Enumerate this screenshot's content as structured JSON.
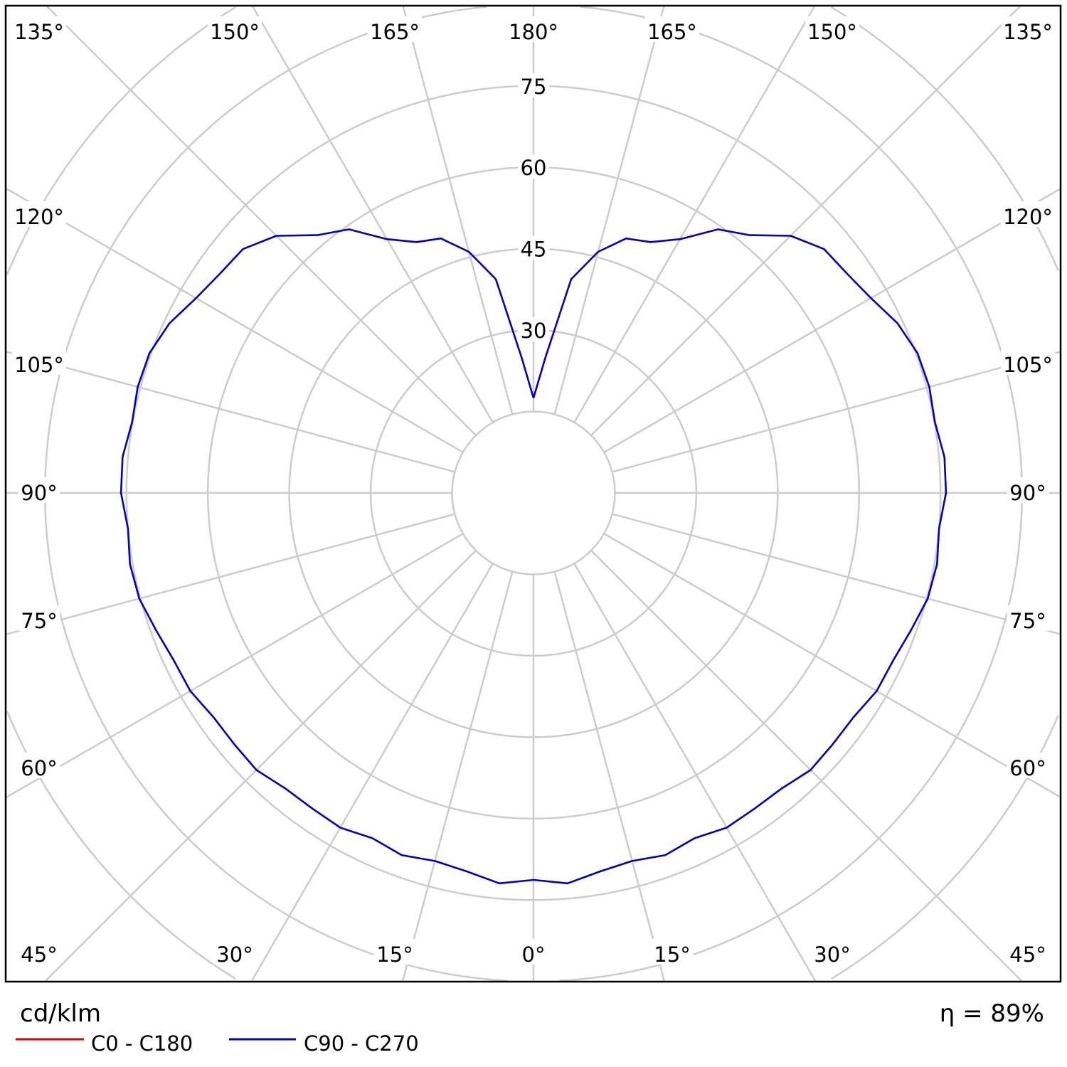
{
  "chart_data": {
    "type": "polar-line",
    "unit_label": "cd/klm",
    "efficiency_label": "η = 89%",
    "radial_ticks": [
      15,
      30,
      45,
      60,
      75,
      90,
      105
    ],
    "radial_tick_labels": [
      "30",
      "45",
      "60",
      "75"
    ],
    "angle_labels": {
      "bottom": [
        "45°",
        "30°",
        "15°",
        "0°",
        "15°",
        "30°",
        "45°"
      ],
      "top": [
        "135°",
        "150°",
        "165°",
        "180°",
        "165°",
        "150°",
        "135°"
      ],
      "left": [
        "120°",
        "105°",
        "90°",
        "75°",
        "60°"
      ],
      "right": [
        "120°",
        "105°",
        "90°",
        "75°",
        "60°"
      ]
    },
    "grid": true,
    "gamma_deg": [
      0,
      5,
      10,
      15,
      20,
      25,
      30,
      35,
      40,
      45,
      50,
      55,
      60,
      65,
      70,
      75,
      80,
      85,
      90,
      95,
      100,
      105,
      110,
      115,
      120,
      125,
      130,
      135,
      140,
      145,
      150,
      155,
      160,
      165,
      170,
      175,
      180
    ],
    "series": [
      {
        "name": "C0 - C180",
        "color": "#e00000",
        "values": []
      },
      {
        "name": "C90 - C270",
        "color": "#0000cc",
        "values": [
          71.3,
          72.2,
          70.8,
          70.2,
          71,
          70.2,
          71.2,
          71,
          71.1,
          72.2,
          72,
          72,
          73,
          73.1,
          74,
          75.2,
          75.5,
          75,
          76,
          76,
          75.1,
          75.5,
          75.3,
          74,
          71.8,
          70.5,
          69.9,
          67,
          62,
          59.3,
          54,
          51,
          49.9,
          46,
          40,
          25,
          17.5
        ]
      }
    ],
    "legend_placement": "bottom-left",
    "grid_color": "#cccccc"
  }
}
